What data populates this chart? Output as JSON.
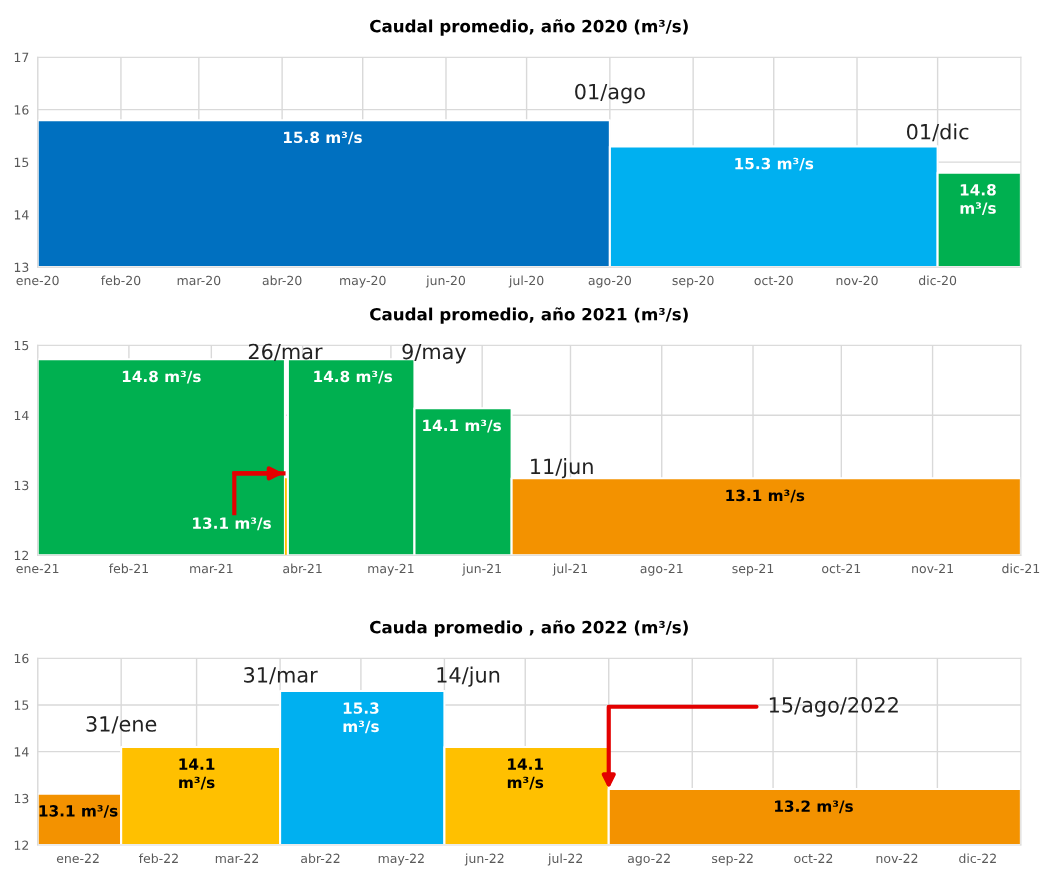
{
  "chart_data": [
    {
      "type": "area",
      "title": "Caudal promedio, año 2020 (m³/s)",
      "series": [
        {
          "x": [
            "2020-01-01",
            "2020-04-16",
            "2020-08-01"
          ],
          "values": [
            15.8,
            15.8,
            15.8
          ],
          "color": "#0070c0",
          "value_labels": [
            null,
            "15.8 m³/s",
            null
          ]
        },
        {
          "x": [
            "2020-08-01",
            "2020-10-01",
            "2020-12-01"
          ],
          "values": [
            15.3,
            15.3,
            15.3
          ],
          "color": "#00b0f0",
          "value_labels": [
            null,
            "15.3 m³/s",
            null
          ]
        },
        {
          "x": [
            "2020-12-01",
            "2020-12-16",
            "2021-01-01"
          ],
          "values": [
            14.8,
            14.8,
            14.8
          ],
          "color": "#00b050",
          "value_labels": [
            null,
            "14.8\nm³/s",
            null
          ]
        }
      ],
      "xlim": [
        "2020-01-01",
        "2021-01-01"
      ],
      "xticks": [
        {
          "value": "2020-01-01",
          "label": "ene-20"
        },
        {
          "value": "2020-02-01",
          "label": "feb-20"
        },
        {
          "value": "2020-03-01",
          "label": "mar-20"
        },
        {
          "value": "2020-04-01",
          "label": "abr-20"
        },
        {
          "value": "2020-05-01",
          "label": "may-20"
        },
        {
          "value": "2020-06-01",
          "label": "jun-20"
        },
        {
          "value": "2020-07-01",
          "label": "jul-20"
        },
        {
          "value": "2020-08-01",
          "label": "ago-20"
        },
        {
          "value": "2020-09-01",
          "label": "sep-20"
        },
        {
          "value": "2020-10-01",
          "label": "oct-20"
        },
        {
          "value": "2020-11-01",
          "label": "nov-20"
        },
        {
          "value": "2020-12-01",
          "label": "dic-20"
        }
      ],
      "ylim": [
        13,
        17
      ],
      "yticks": [
        13,
        14,
        15,
        16,
        17
      ],
      "grid": true,
      "annotations": [
        {
          "text": "01/ago",
          "x": "2020-08-01",
          "y": 15.8
        },
        {
          "text": "01/dic",
          "x": "2020-12-01",
          "y": 15.3
        }
      ]
    },
    {
      "type": "area",
      "title": "Caudal promedio, año 2021 (m³/s)",
      "series": [
        {
          "x": [
            "2021-01-01",
            "2021-02-12",
            "2021-03-26"
          ],
          "values": [
            14.8,
            14.8,
            14.8
          ],
          "color": "#00b050",
          "value_labels": [
            null,
            "14.8 m³/s",
            null
          ]
        },
        {
          "x": [
            "2021-03-26",
            "2021-03-26T12:00",
            "2021-03-27"
          ],
          "values": [
            13.1,
            13.1,
            13.1
          ],
          "color": "#ffc000",
          "value_labels": [
            null,
            "13.1 m³/s",
            null
          ]
        },
        {
          "x": [
            "2021-03-27",
            "2021-04-18",
            "2021-05-09"
          ],
          "values": [
            14.8,
            14.8,
            14.8
          ],
          "color": "#00b050",
          "value_labels": [
            null,
            "14.8 m³/s",
            null
          ]
        },
        {
          "x": [
            "2021-05-09",
            "2021-05-25",
            "2021-06-11"
          ],
          "values": [
            14.1,
            14.1,
            14.1
          ],
          "color": "#00b050",
          "value_labels": [
            null,
            "14.1 m³/s",
            null
          ]
        },
        {
          "x": [
            "2021-06-11",
            "2021-09-05",
            "2021-12-01"
          ],
          "values": [
            13.1,
            13.1,
            13.1
          ],
          "color": "#f39200",
          "value_labels": [
            null,
            "13.1 m³/s",
            null
          ]
        }
      ],
      "xlim": [
        "2021-01-01",
        "2021-12-01"
      ],
      "xticks": [
        {
          "value": "2021-01-01",
          "label": "ene-21"
        },
        {
          "value": "2021-02-01",
          "label": "feb-21"
        },
        {
          "value": "2021-03-01",
          "label": "mar-21"
        },
        {
          "value": "2021-04-01",
          "label": "abr-21"
        },
        {
          "value": "2021-05-01",
          "label": "may-21"
        },
        {
          "value": "2021-06-01",
          "label": "jun-21"
        },
        {
          "value": "2021-07-01",
          "label": "jul-21"
        },
        {
          "value": "2021-08-01",
          "label": "ago-21"
        },
        {
          "value": "2021-09-01",
          "label": "sep-21"
        },
        {
          "value": "2021-10-01",
          "label": "oct-21"
        },
        {
          "value": "2021-11-01",
          "label": "nov-21"
        },
        {
          "value": "2021-12-01",
          "label": "dic-21"
        }
      ],
      "ylim": [
        12,
        15
      ],
      "yticks": [
        12,
        13,
        14,
        15
      ],
      "grid": true,
      "annotations": [
        {
          "text": "26/mar",
          "x": "2021-03-26",
          "y": 14.8
        },
        {
          "text": "9/may",
          "x": "2021-05-09",
          "y": 14.8
        },
        {
          "text": "11/jun",
          "x": "2021-06-11",
          "y": 13.1
        }
      ]
    },
    {
      "type": "area",
      "title": "Cauda promedio , año 2022 (m³/s)",
      "series": [
        {
          "x": [
            "2022-01-01",
            "2022-01-16",
            "2022-02-01"
          ],
          "values": [
            13.1,
            13.1,
            13.1
          ],
          "color": "#f39200",
          "value_labels": [
            null,
            "13.1 m³/s",
            null
          ]
        },
        {
          "x": [
            "2022-02-01",
            "2022-03-01",
            "2022-04-01"
          ],
          "values": [
            14.1,
            14.1,
            14.1
          ],
          "color": "#ffc000",
          "value_labels": [
            null,
            "14.1\nm³/s",
            null
          ]
        },
        {
          "x": [
            "2022-04-01",
            "2022-05-01",
            "2022-06-01"
          ],
          "values": [
            15.3,
            15.3,
            15.3
          ],
          "color": "#00b0f0",
          "value_labels": [
            null,
            "15.3\nm³/s",
            null
          ]
        },
        {
          "x": [
            "2022-06-01",
            "2022-07-01",
            "2022-08-01"
          ],
          "values": [
            14.1,
            14.1,
            14.1
          ],
          "color": "#ffc000",
          "value_labels": [
            null,
            "14.1\nm³/s",
            null
          ]
        },
        {
          "x": [
            "2022-08-01",
            "2022-10-16",
            "2023-01-01"
          ],
          "values": [
            13.2,
            13.2,
            13.2
          ],
          "color": "#f39200",
          "value_labels": [
            null,
            "13.2 m³/s",
            null
          ]
        }
      ],
      "xlim": [
        "2022-01-01",
        "2023-01-01"
      ],
      "xticks": [
        {
          "value": "2022-01-01",
          "label": null
        },
        {
          "value": "2022-01-16",
          "label": "ene-22"
        },
        {
          "value": "2022-02-01",
          "label": null
        },
        {
          "value": "2022-02-15",
          "label": "feb-22"
        },
        {
          "value": "2022-03-01",
          "label": null
        },
        {
          "value": "2022-03-16",
          "label": "mar-22"
        },
        {
          "value": "2022-04-01",
          "label": null
        },
        {
          "value": "2022-04-16",
          "label": "abr-22"
        },
        {
          "value": "2022-05-01",
          "label": null
        },
        {
          "value": "2022-05-16",
          "label": "may-22"
        },
        {
          "value": "2022-06-01",
          "label": null
        },
        {
          "value": "2022-06-16",
          "label": "jun-22"
        },
        {
          "value": "2022-07-01",
          "label": null
        },
        {
          "value": "2022-07-16",
          "label": "jul-22"
        },
        {
          "value": "2022-08-01",
          "label": null
        },
        {
          "value": "2022-08-16",
          "label": "ago-22"
        },
        {
          "value": "2022-09-01",
          "label": null
        },
        {
          "value": "2022-09-16",
          "label": "sep-22"
        },
        {
          "value": "2022-10-01",
          "label": null
        },
        {
          "value": "2022-10-16",
          "label": "oct-22"
        },
        {
          "value": "2022-11-01",
          "label": null
        },
        {
          "value": "2022-11-16",
          "label": "nov-22"
        },
        {
          "value": "2022-12-01",
          "label": null
        },
        {
          "value": "2022-12-16",
          "label": "dic-22"
        }
      ],
      "ylim": [
        12,
        16
      ],
      "yticks": [
        12,
        13,
        14,
        15,
        16
      ],
      "grid": true,
      "annotations": [
        {
          "text": "31/ene",
          "x": "2022-02-01",
          "y": 14.1
        },
        {
          "text": "31/mar",
          "x": "2022-04-01",
          "y": 15.3
        },
        {
          "text": "14/jun",
          "x": "2022-06-01",
          "y": 15.3
        },
        {
          "text": "15/ago/2022",
          "x": "2022-08-01",
          "y": 13.2
        }
      ]
    }
  ]
}
